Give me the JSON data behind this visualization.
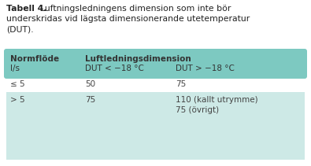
{
  "title_bold": "Tabell 4.",
  "title_rest": " Luftningsledningens dimension som inte bör\nunderskridas vid lägsta dimensionerande utetemperatur\n(DUT).",
  "header_bg": "#7dc9c1",
  "row2_bg": "#cde9e6",
  "col1_header_bold": "Normflöde",
  "col1_header_sub": "l/s",
  "col2_header_bold": "Luftledningsdimension",
  "col2_sub1": "DUT < −18 °C",
  "col2_sub2": "DUT > −18 °C",
  "row1": [
    "≤ 5",
    "50",
    "75"
  ],
  "row2_col1": "> 5",
  "row2_col2": "75",
  "row2_col3a": "110 (kallt utrymme)",
  "row2_col3b": "75 (övrigt)",
  "bg_color": "#ffffff",
  "text_color": "#444444",
  "header_text_color": "#333333",
  "title_color": "#222222"
}
